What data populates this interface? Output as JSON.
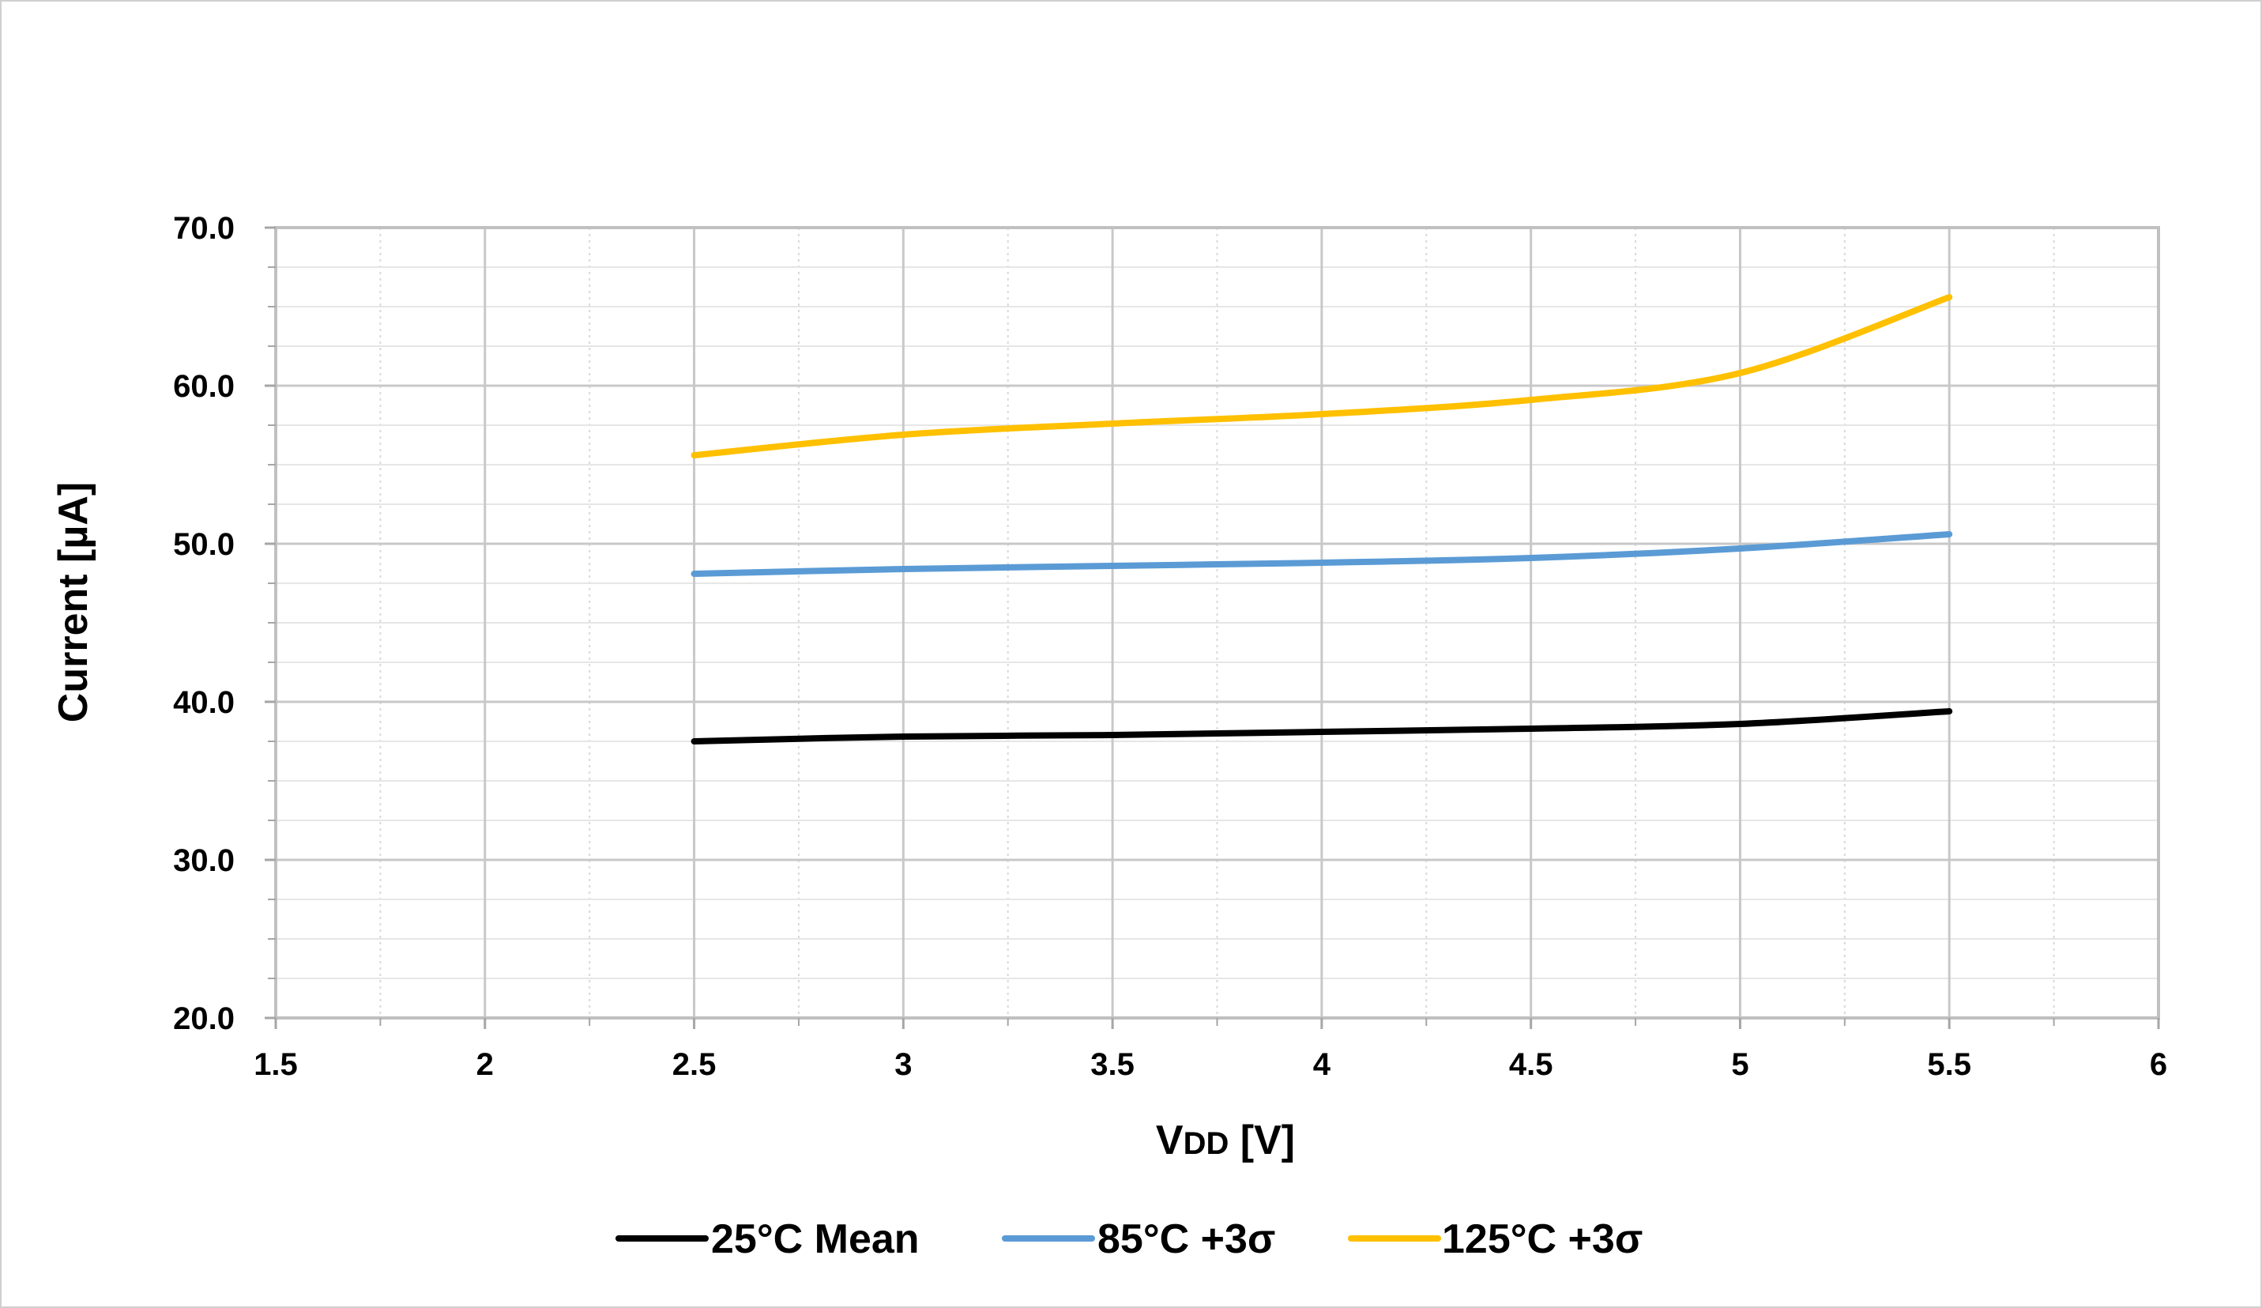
{
  "chart_data": {
    "type": "line",
    "title": "",
    "xlabel": "VDD [V]",
    "xlabel_main": "V",
    "xlabel_sub": "DD",
    "xlabel_unit": " [V]",
    "ylabel": "Current [µA]",
    "xlim": [
      1.5,
      6
    ],
    "ylim": [
      20,
      70
    ],
    "x_ticks": [
      "1.5",
      "2",
      "2.5",
      "3",
      "3.5",
      "4",
      "4.5",
      "5",
      "5.5",
      "6"
    ],
    "y_ticks": [
      "20.0",
      "30.0",
      "40.0",
      "50.0",
      "60.0",
      "70.0"
    ],
    "grid": true,
    "legend_position": "bottom",
    "x": [
      2.5,
      3,
      3.5,
      4,
      4.5,
      5,
      5.5
    ],
    "series": [
      {
        "name": "25°C Mean",
        "color": "#000000",
        "values": [
          37.5,
          37.8,
          37.9,
          38.1,
          38.3,
          38.6,
          39.4
        ]
      },
      {
        "name": "85°C +3σ",
        "color": "#5b9bd5",
        "values": [
          48.1,
          48.4,
          48.6,
          48.8,
          49.1,
          49.7,
          50.6
        ]
      },
      {
        "name": "125°C +3σ",
        "color": "#ffc000",
        "values": [
          55.6,
          56.9,
          57.6,
          58.2,
          59.1,
          60.8,
          65.6
        ]
      }
    ]
  }
}
